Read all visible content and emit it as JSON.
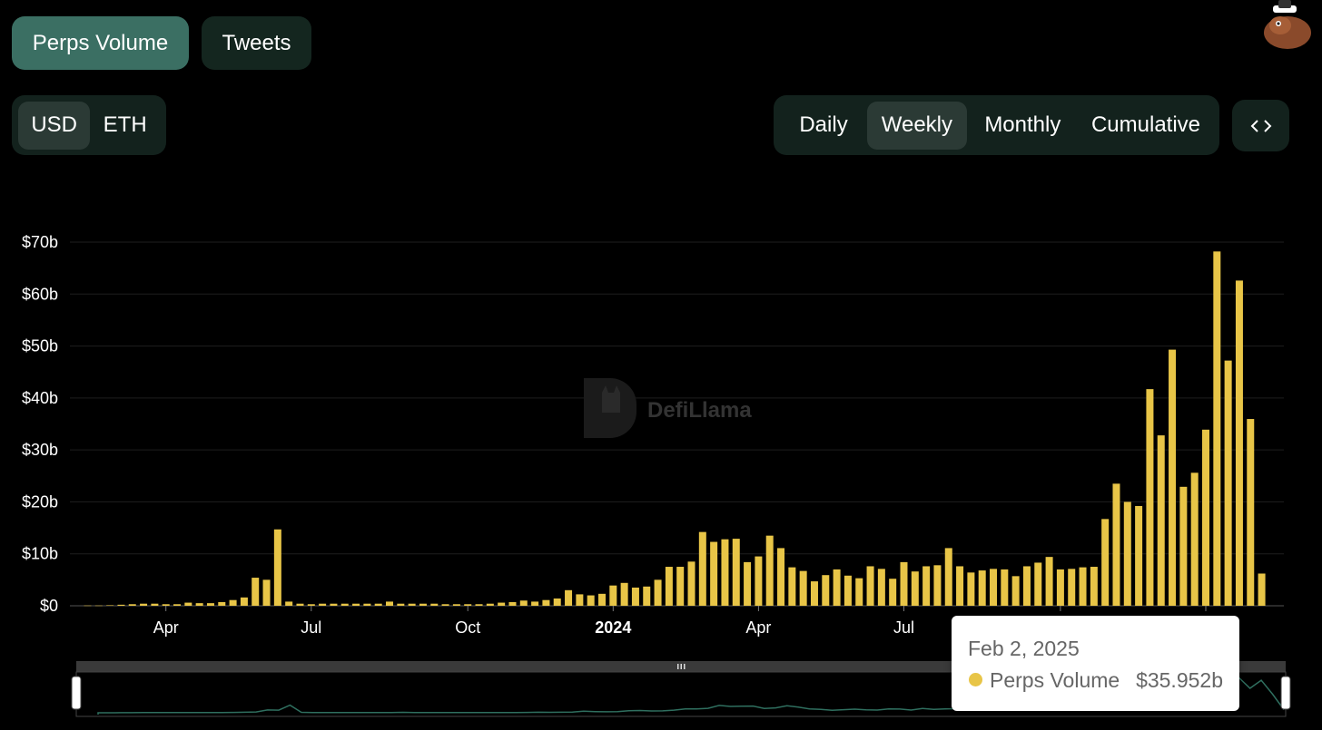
{
  "tabs": [
    {
      "label": "Perps Volume",
      "active": true
    },
    {
      "label": "Tweets",
      "active": false
    }
  ],
  "denomination": {
    "options": [
      "USD",
      "ETH"
    ],
    "selected": "USD"
  },
  "period": {
    "options": [
      "Daily",
      "Weekly",
      "Monthly",
      "Cumulative"
    ],
    "selected": "Weekly"
  },
  "embed_icon": "code-brackets-icon",
  "watermark": "DefiLlama",
  "colors": {
    "bar": "#e8c547",
    "active_tab": "#3b6f63",
    "panel": "#13221d",
    "brush_line": "#2f6f5f"
  },
  "chart_data": {
    "type": "bar",
    "series": [
      {
        "name": "Perps Volume",
        "values": [
          0.05,
          0.05,
          0.1,
          0.2,
          0.3,
          0.4,
          0.4,
          0.3,
          0.3,
          0.6,
          0.5,
          0.5,
          0.7,
          1.1,
          1.6,
          5.4,
          5.0,
          14.7,
          0.8,
          0.4,
          0.3,
          0.4,
          0.4,
          0.4,
          0.4,
          0.4,
          0.4,
          0.8,
          0.4,
          0.4,
          0.4,
          0.4,
          0.3,
          0.3,
          0.3,
          0.3,
          0.4,
          0.6,
          0.7,
          1.0,
          0.8,
          1.1,
          1.4,
          3.0,
          2.2,
          2.0,
          2.3,
          3.9,
          4.4,
          3.5,
          3.7,
          5.0,
          7.5,
          7.5,
          8.5,
          14.2,
          12.3,
          12.8,
          12.9,
          8.4,
          9.5,
          13.5,
          11.1,
          7.4,
          6.7,
          4.7,
          5.9,
          7.0,
          5.8,
          5.3,
          7.6,
          7.1,
          5.2,
          8.4,
          6.6,
          7.6,
          7.8,
          11.1,
          7.6,
          6.4,
          6.8,
          7.1,
          7.0,
          5.7,
          7.6,
          8.3,
          9.4,
          7.0,
          7.1,
          7.4,
          7.5,
          16.7,
          23.5,
          20.0,
          19.2,
          41.7,
          32.8,
          49.3,
          22.9,
          25.6,
          33.9,
          68.2,
          47.2,
          62.6,
          35.952,
          6.2
        ]
      }
    ],
    "x_tick_labels": [
      "Apr",
      "Jul",
      "Oct",
      "2024",
      "Apr",
      "Jul"
    ],
    "y_tick_labels": [
      "$0",
      "$10b",
      "$20b",
      "$30b",
      "$40b",
      "$50b",
      "$60b",
      "$70b"
    ],
    "ylim": [
      0,
      70
    ],
    "y_unit": "billion USD",
    "grid": true,
    "tooltip": {
      "date": "Feb 2, 2025",
      "series": "Perps Volume",
      "value": "$35.952b"
    }
  }
}
